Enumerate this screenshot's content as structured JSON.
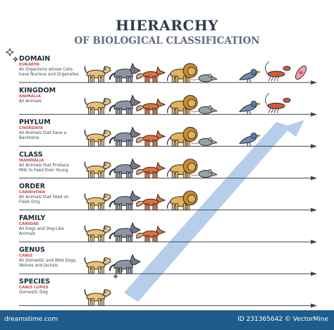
{
  "title": "HIERARCHY",
  "subtitle": "OF BIOLOGICAL CLASSIFICATION",
  "colors": {
    "arrow": "#a9c6e6",
    "text": "#2e3a4d",
    "accent": "#d64545",
    "footer": "#1e5c8c"
  },
  "ranks": [
    {
      "name": "DOMAIN",
      "latin": "EUKARYA",
      "desc": [
        "All Organisms whose Cells",
        "have Nucleus and Organelles"
      ],
      "animals": [
        "dog",
        "wolf",
        "fox",
        "lion",
        "rat",
        "bird",
        "lobster",
        "microbe"
      ]
    },
    {
      "name": "KINGDOM",
      "latin": "ANIMALIA",
      "desc": [
        "All Animals"
      ],
      "animals": [
        "dog",
        "wolf",
        "fox",
        "lion",
        "rat",
        "bird",
        "lobster"
      ]
    },
    {
      "name": "PHYLUM",
      "latin": "CHORDATA",
      "desc": [
        "All Animals that have a",
        "Backbone"
      ],
      "animals": [
        "dog",
        "wolf",
        "fox",
        "lion",
        "rat",
        "bird"
      ]
    },
    {
      "name": "CLASS",
      "latin": "MAMMALIA",
      "desc": [
        "All Animals that Produce",
        "Milk to Feed their Young"
      ],
      "animals": [
        "dog",
        "wolf",
        "fox",
        "lion",
        "rat"
      ]
    },
    {
      "name": "ORDER",
      "latin": "CARNIVORA",
      "desc": [
        "All Animals that Feed on",
        "Flesh Only"
      ],
      "animals": [
        "dog",
        "wolf",
        "fox",
        "lion"
      ]
    },
    {
      "name": "FAMILY",
      "latin": "CANIDAE",
      "desc": [
        "All Dogs and Dog-Like",
        "Animals"
      ],
      "animals": [
        "dog",
        "wolf",
        "fox"
      ]
    },
    {
      "name": "GENUS",
      "latin": "CANIS",
      "desc": [
        "All Domestic and Wild Dogs,",
        "Wolves and Jackals"
      ],
      "animals": [
        "dog",
        "wolf"
      ]
    },
    {
      "name": "SPECIES",
      "latin": "CANIS LUPUS",
      "desc": [
        "Domestic Dog"
      ],
      "animals": [
        "dog"
      ]
    }
  ],
  "footer": {
    "left": "dreamstime.com",
    "right": "ID 231365642 © VectorMine"
  }
}
